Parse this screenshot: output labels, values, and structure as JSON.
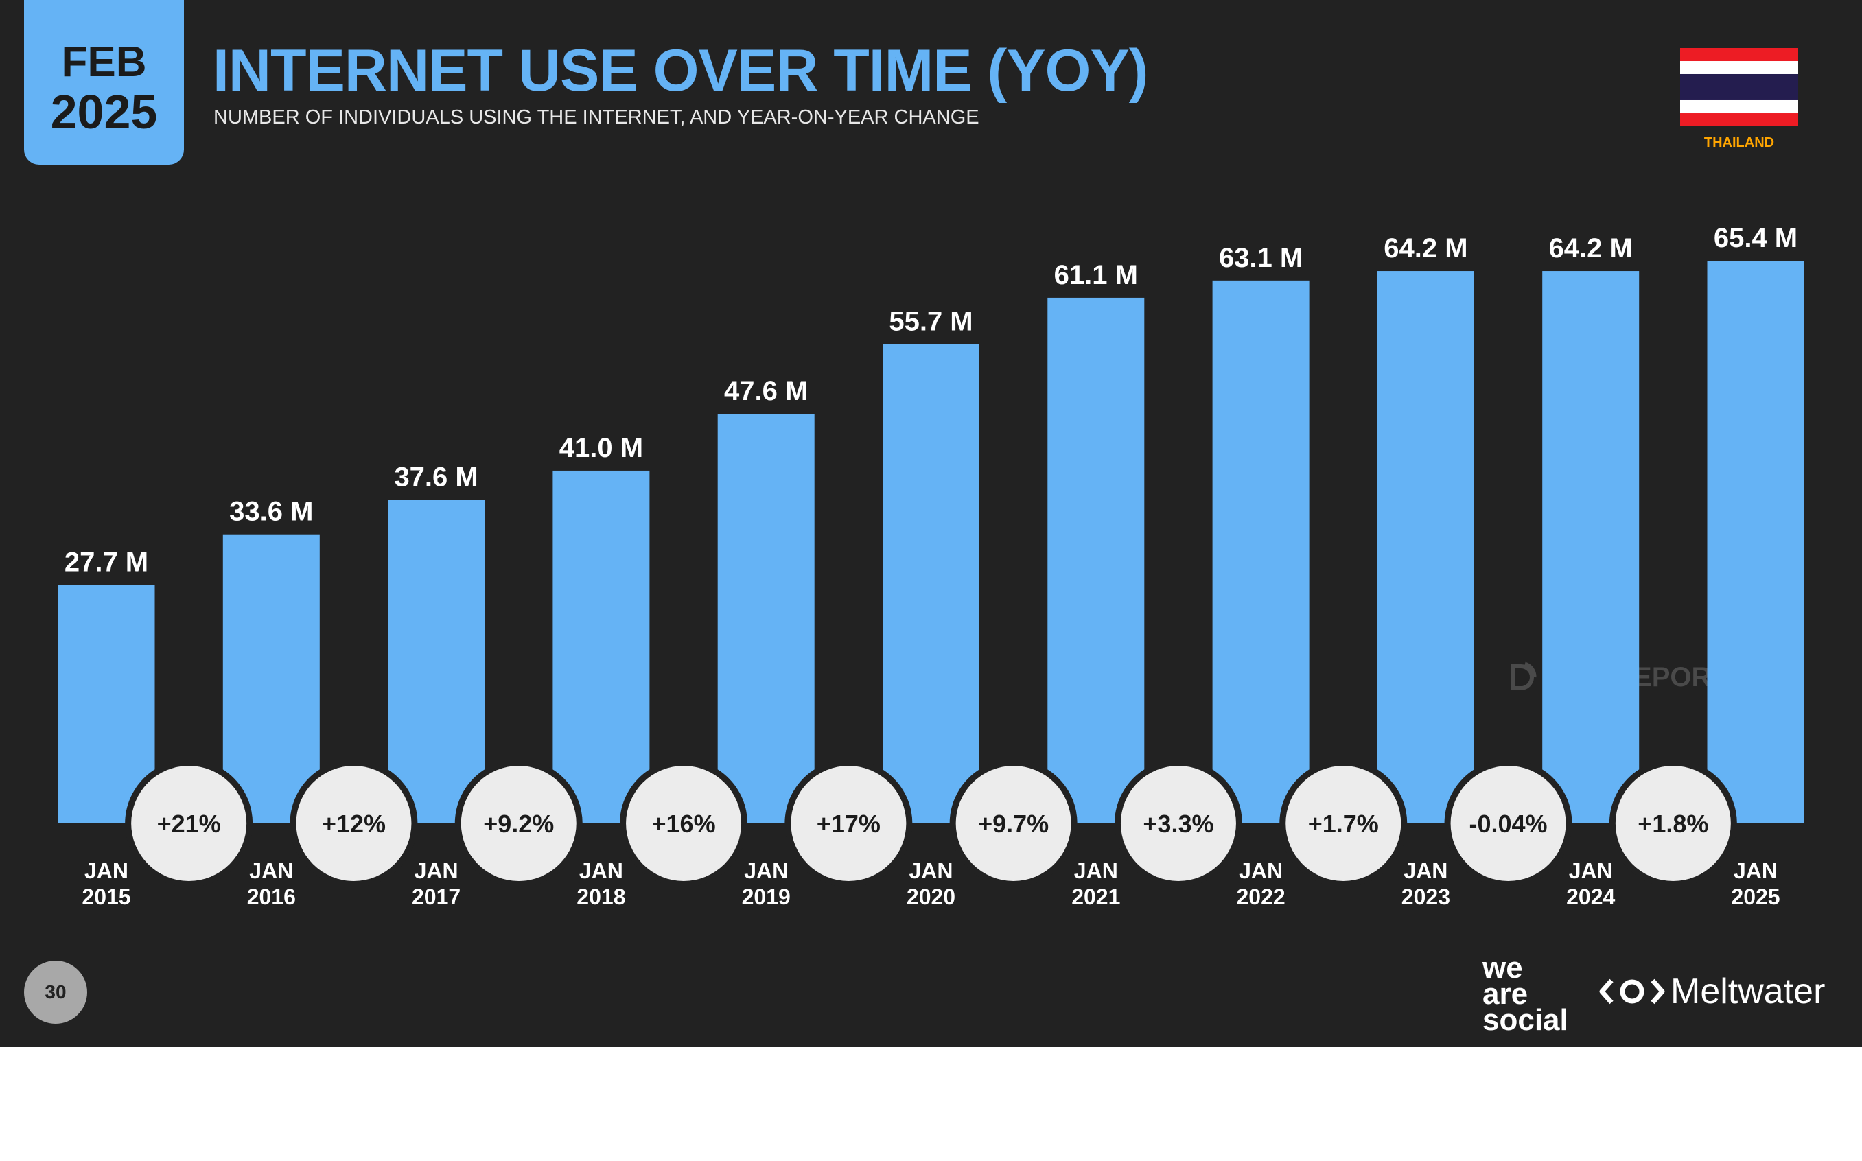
{
  "badge": {
    "month": "FEB",
    "year": "2025"
  },
  "header": {
    "title": "INTERNET USE OVER TIME (YOY)",
    "subtitle": "NUMBER OF INDIVIDUALS USING THE INTERNET, AND YEAR-ON-YEAR CHANGE"
  },
  "country": {
    "name": "THAILAND",
    "flag_icon": "thailand-flag-icon"
  },
  "watermark": "DATAREPORTAL",
  "page_number": "30",
  "brands": {
    "we_are_social": [
      "we",
      "are",
      "social"
    ],
    "meltwater": "Meltwater"
  },
  "colors": {
    "background": "#222222",
    "accent": "#65b3f5",
    "bubble": "#ececec",
    "country_label": "#ffa500"
  },
  "chart_data": {
    "type": "bar",
    "categories": [
      [
        "JAN",
        "2015"
      ],
      [
        "JAN",
        "2016"
      ],
      [
        "JAN",
        "2017"
      ],
      [
        "JAN",
        "2018"
      ],
      [
        "JAN",
        "2019"
      ],
      [
        "JAN",
        "2020"
      ],
      [
        "JAN",
        "2021"
      ],
      [
        "JAN",
        "2022"
      ],
      [
        "JAN",
        "2023"
      ],
      [
        "JAN",
        "2024"
      ],
      [
        "JAN",
        "2025"
      ]
    ],
    "values": [
      27.7,
      33.6,
      37.6,
      41.0,
      47.6,
      55.7,
      61.1,
      63.1,
      64.2,
      64.2,
      65.4
    ],
    "value_labels": [
      "27.7 M",
      "33.6 M",
      "37.6 M",
      "41.0 M",
      "47.6 M",
      "55.7 M",
      "61.1 M",
      "63.1 M",
      "64.2 M",
      "64.2 M",
      "65.4 M"
    ],
    "unit": "M",
    "yoy_change": [
      "+21%",
      "+12%",
      "+9.2%",
      "+16%",
      "+17%",
      "+9.7%",
      "+3.3%",
      "+1.7%",
      "-0.04%",
      "+1.8%"
    ],
    "ylim": [
      0,
      70
    ],
    "grid": false,
    "legend": "none"
  }
}
